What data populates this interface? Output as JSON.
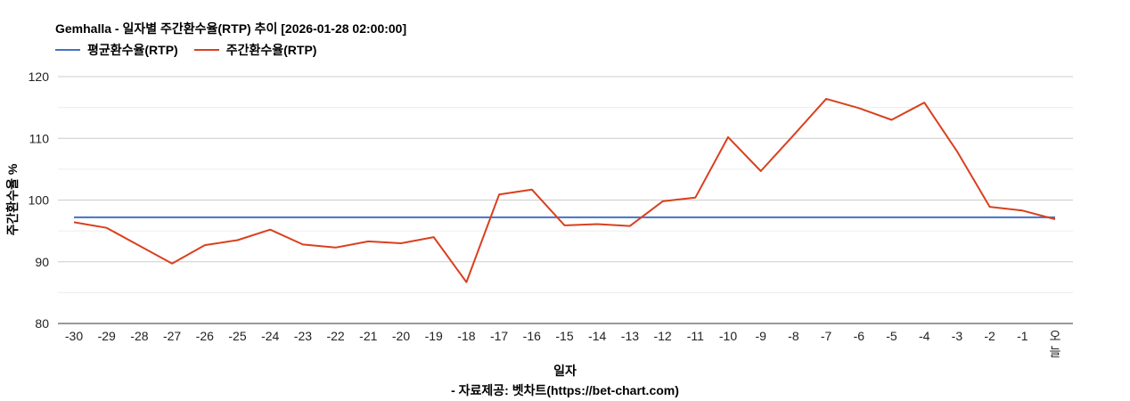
{
  "chart_data": {
    "type": "line",
    "title": "Gemhalla - 일자별 주간환수율(RTP) 추이 [2026-01-28 02:00:00]",
    "xlabel": "일자",
    "ylabel": "주간환수율 %",
    "source": "- 자료제공: 벳차트(https://bet-chart.com)",
    "categories": [
      "-30",
      "-29",
      "-28",
      "-27",
      "-26",
      "-25",
      "-24",
      "-23",
      "-22",
      "-21",
      "-20",
      "-19",
      "-18",
      "-17",
      "-16",
      "-15",
      "-14",
      "-13",
      "-12",
      "-11",
      "-10",
      "-9",
      "-8",
      "-7",
      "-6",
      "-5",
      "-4",
      "-3",
      "-2",
      "-1",
      "오늘"
    ],
    "ylim": [
      80,
      120
    ],
    "yticks": [
      80,
      90,
      100,
      110,
      120
    ],
    "grid": true,
    "legend_position": "top-left",
    "series": [
      {
        "name": "평균환수율(RTP)",
        "color": "#4472c4",
        "values": [
          97.2,
          97.2,
          97.2,
          97.2,
          97.2,
          97.2,
          97.2,
          97.2,
          97.2,
          97.2,
          97.2,
          97.2,
          97.2,
          97.2,
          97.2,
          97.2,
          97.2,
          97.2,
          97.2,
          97.2,
          97.2,
          97.2,
          97.2,
          97.2,
          97.2,
          97.2,
          97.2,
          97.2,
          97.2,
          97.2,
          97.2
        ]
      },
      {
        "name": "주간환수율(RTP)",
        "color": "#d9401e",
        "values": [
          96.4,
          95.5,
          92.6,
          89.7,
          92.7,
          93.5,
          95.2,
          92.8,
          92.3,
          93.3,
          93.0,
          94.0,
          86.7,
          100.9,
          101.7,
          95.9,
          96.1,
          95.8,
          99.8,
          100.4,
          110.2,
          104.7,
          110.5,
          116.4,
          114.9,
          113.0,
          115.8,
          107.9,
          98.9,
          98.3,
          96.9
        ]
      }
    ]
  }
}
